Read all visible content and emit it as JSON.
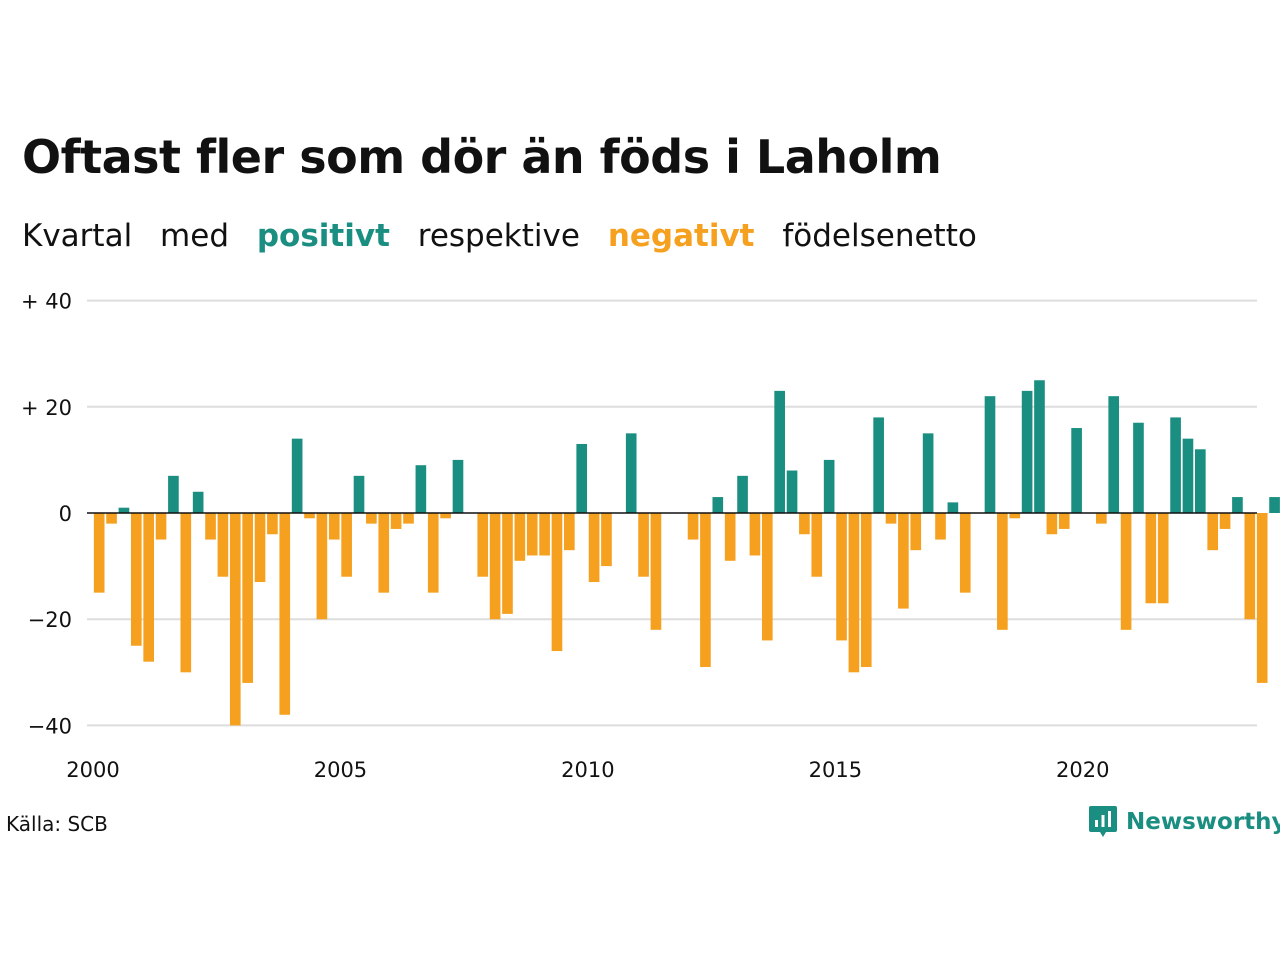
{
  "title": "Oftast fler som dör än föds i Laholm",
  "subtitle": {
    "w1": "Kvartal",
    "w2": "med",
    "positive": "positivt",
    "w3": "respektive",
    "negative": "negativt",
    "w4": "födelsenetto"
  },
  "source": "Källa: SCB",
  "brand": {
    "name": "Newsworthy",
    "icon": "newsworthy-logo-icon"
  },
  "colors": {
    "positive": "#1a8e80",
    "negative": "#f5a01e",
    "grid": "#dddddd",
    "text": "#111111"
  },
  "chart_data": {
    "type": "bar",
    "y_ticks": [
      {
        "value": 40,
        "label": "+ 40"
      },
      {
        "value": 20,
        "label": "+ 20"
      },
      {
        "value": 0,
        "label": "0"
      },
      {
        "value": -20,
        "label": "−20"
      },
      {
        "value": -40,
        "label": "−40"
      }
    ],
    "x_ticks": [
      {
        "value": 2000,
        "label": "2000"
      },
      {
        "value": 2005,
        "label": "2005"
      },
      {
        "value": 2010,
        "label": "2010"
      },
      {
        "value": 2015,
        "label": "2015"
      },
      {
        "value": 2020,
        "label": "2020"
      }
    ],
    "ylim": [
      -40,
      40
    ],
    "xlim": [
      2000,
      2023.5
    ],
    "grid": true,
    "categories": [
      "2000 Q1",
      "2000 Q2",
      "2000 Q3",
      "2000 Q4",
      "2001 Q1",
      "2001 Q2",
      "2001 Q3",
      "2001 Q4",
      "2002 Q1",
      "2002 Q2",
      "2002 Q3",
      "2002 Q4",
      "2003 Q1",
      "2003 Q2",
      "2003 Q3",
      "2003 Q4",
      "2004 Q1",
      "2004 Q2",
      "2004 Q3",
      "2004 Q4",
      "2005 Q1",
      "2005 Q2",
      "2005 Q3",
      "2005 Q4",
      "2006 Q1",
      "2006 Q2",
      "2006 Q3",
      "2006 Q4",
      "2007 Q1",
      "2007 Q2",
      "2007 Q3",
      "2007 Q4",
      "2008 Q1",
      "2008 Q2",
      "2008 Q3",
      "2008 Q4",
      "2009 Q1",
      "2009 Q2",
      "2009 Q3",
      "2009 Q4",
      "2010 Q1",
      "2010 Q2",
      "2010 Q3",
      "2010 Q4",
      "2011 Q1",
      "2011 Q2",
      "2011 Q3",
      "2011 Q4",
      "2012 Q1",
      "2012 Q2",
      "2012 Q3",
      "2012 Q4",
      "2013 Q1",
      "2013 Q2",
      "2013 Q3",
      "2013 Q4",
      "2014 Q1",
      "2014 Q2",
      "2014 Q3",
      "2014 Q4",
      "2015 Q1",
      "2015 Q2",
      "2015 Q3",
      "2015 Q4",
      "2016 Q1",
      "2016 Q2",
      "2016 Q3",
      "2016 Q4",
      "2017 Q1",
      "2017 Q2",
      "2017 Q3",
      "2017 Q4",
      "2018 Q1",
      "2018 Q2",
      "2018 Q3",
      "2018 Q4",
      "2019 Q1",
      "2019 Q2",
      "2019 Q3",
      "2019 Q4",
      "2020 Q1",
      "2020 Q2",
      "2020 Q3",
      "2020 Q4",
      "2021 Q1",
      "2021 Q2",
      "2021 Q3",
      "2021 Q4",
      "2022 Q1",
      "2022 Q2",
      "2022 Q3",
      "2022 Q4",
      "2023 Q1",
      "2023 Q2",
      "2023 Q3",
      "2023 Q4"
    ],
    "values": [
      -15,
      -2,
      1,
      -25,
      -28,
      -5,
      7,
      -30,
      4,
      -5,
      -12,
      -40,
      -32,
      -13,
      -4,
      -38,
      14,
      -1,
      -20,
      -5,
      -12,
      7,
      -2,
      -15,
      -3,
      -2,
      9,
      -15,
      -1,
      10,
      0,
      -12,
      -20,
      -19,
      -9,
      -8,
      -8,
      -26,
      -7,
      13,
      -13,
      -10,
      0,
      15,
      -12,
      -22,
      0,
      0,
      -5,
      -29,
      3,
      -9,
      7,
      -8,
      -24,
      23,
      8,
      -4,
      -12,
      10,
      -24,
      -30,
      -29,
      18,
      -2,
      -18,
      -7,
      15,
      -5,
      2,
      -15,
      0,
      22,
      -22,
      -1,
      23,
      25,
      -4,
      -3,
      16,
      0,
      -2,
      22,
      -22,
      17,
      -17,
      -17,
      18,
      14,
      12,
      -7,
      -3,
      3,
      -20,
      -32,
      3
    ]
  }
}
